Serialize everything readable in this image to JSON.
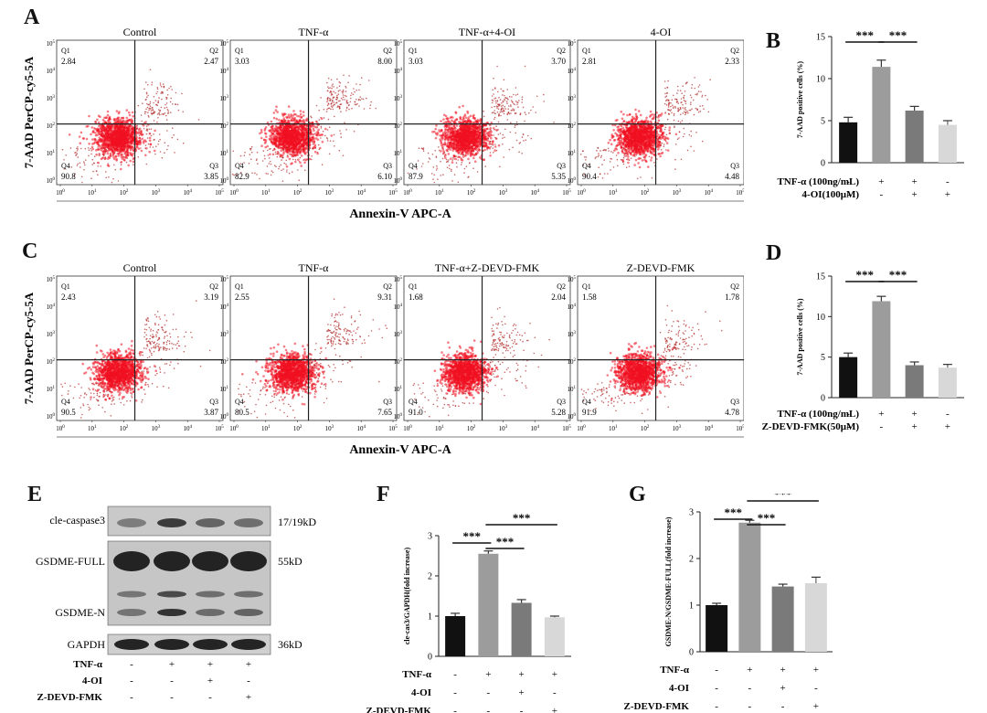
{
  "panel_letters": {
    "a": "A",
    "b": "B",
    "c": "C",
    "d": "D",
    "e": "E",
    "f": "F",
    "g": "G"
  },
  "flow_panels": [
    {
      "id": "A",
      "ylabel": "7-AAD PerCP-cy5-5A",
      "xlabel": "Annexin-V APC-A",
      "plots": [
        {
          "title": "Control",
          "q1": "2.84",
          "q2": "2.47",
          "q3": "3.85",
          "q4": "90.8",
          "active": false
        },
        {
          "title": "TNF-α",
          "q1": "3.03",
          "q2": "8.00",
          "q3": "6.10",
          "q4": "82.9",
          "active": true
        },
        {
          "title": "TNF-α+4-OI",
          "q1": "3.03",
          "q2": "3.70",
          "q3": "5.35",
          "q4": "87.9",
          "active": false
        },
        {
          "title": "4-OI",
          "q1": "2.81",
          "q2": "2.33",
          "q3": "4.48",
          "q4": "90.4",
          "active": false
        }
      ]
    },
    {
      "id": "C",
      "ylabel": "7-AAD PerCP-cy5-5A",
      "xlabel": "Annexin-V APC-A",
      "plots": [
        {
          "title": "Control",
          "q1": "2.43",
          "q2": "3.19",
          "q3": "3.87",
          "q4": "90.5",
          "active": false
        },
        {
          "title": "TNF-α",
          "q1": "2.55",
          "q2": "9.31",
          "q3": "7.65",
          "q4": "80.5",
          "active": true
        },
        {
          "title": "TNF-α+Z-DEVD-FMK",
          "q1": "1.68",
          "q2": "2.04",
          "q3": "5.28",
          "q4": "91.0",
          "active": false
        },
        {
          "title": "Z-DEVD-FMK",
          "q1": "1.58",
          "q2": "1.78",
          "q3": "4.78",
          "q4": "91.9",
          "active": false
        }
      ]
    }
  ],
  "quadrant_labels": {
    "q1": "Q1",
    "q2": "Q2",
    "q3": "Q3",
    "q4": "Q4"
  },
  "flow_axis_ticks": {
    "bases": [
      "10",
      "10",
      "10",
      "10",
      "10",
      "10"
    ],
    "exps": [
      "0",
      "1",
      "2",
      "3",
      "4",
      "5"
    ]
  },
  "chart_data": [
    {
      "id": "B",
      "type": "bar",
      "ylabel": "7-AAD positive cells (%)",
      "ylim": [
        0,
        15
      ],
      "yticks": [
        0,
        5,
        10,
        15
      ],
      "values": [
        4.8,
        11.4,
        6.2,
        4.5
      ],
      "errors": [
        0.6,
        0.8,
        0.5,
        0.5
      ],
      "colors": [
        "#111111",
        "#9c9c9c",
        "#7a7a7a",
        "#d8d8d8"
      ],
      "treatments": [
        {
          "label": "TNF-α (100ng/mL)",
          "signs": [
            "-",
            "+",
            "+",
            "-"
          ]
        },
        {
          "label": "4-OI(100μM)",
          "signs": [
            "-",
            "-",
            "+",
            "+"
          ]
        }
      ],
      "significance": [
        {
          "from": 0,
          "to": 1,
          "text": "***"
        },
        {
          "from": 1,
          "to": 2,
          "text": "***"
        }
      ]
    },
    {
      "id": "D",
      "type": "bar",
      "ylabel": "7-AAD positive cells (%)",
      "ylim": [
        0,
        15
      ],
      "yticks": [
        0,
        5,
        10,
        15
      ],
      "values": [
        5.0,
        11.9,
        4.0,
        3.7
      ],
      "errors": [
        0.5,
        0.6,
        0.4,
        0.4
      ],
      "colors": [
        "#111111",
        "#9c9c9c",
        "#7a7a7a",
        "#d8d8d8"
      ],
      "treatments": [
        {
          "label": "TNF-α (100ng/mL)",
          "signs": [
            "-",
            "+",
            "+",
            "-"
          ]
        },
        {
          "label": "Z-DEVD-FMK(50μM)",
          "signs": [
            "-",
            "-",
            "+",
            "+"
          ]
        }
      ],
      "significance": [
        {
          "from": 0,
          "to": 1,
          "text": "***"
        },
        {
          "from": 1,
          "to": 2,
          "text": "***"
        }
      ]
    },
    {
      "id": "F",
      "type": "bar",
      "ylabel": "cle-cas3/GAPDH(fold increase)",
      "ylim": [
        0,
        3
      ],
      "yticks": [
        0,
        1,
        2,
        3
      ],
      "values": [
        1.0,
        2.55,
        1.33,
        0.97
      ],
      "errors": [
        0.07,
        0.07,
        0.08,
        0.03
      ],
      "colors": [
        "#111111",
        "#9c9c9c",
        "#7a7a7a",
        "#d8d8d8"
      ],
      "treatments": [
        {
          "label": "TNF-α",
          "signs": [
            "-",
            "+",
            "+",
            "+"
          ]
        },
        {
          "label": "4-OI",
          "signs": [
            "-",
            "-",
            "+",
            "-"
          ]
        },
        {
          "label": "Z-DEVD-FMK",
          "signs": [
            "-",
            "-",
            "-",
            "+"
          ]
        }
      ],
      "significance": [
        {
          "from": 0,
          "to": 1,
          "text": "***"
        },
        {
          "from": 1,
          "to": 2,
          "text": "***"
        },
        {
          "from": 1,
          "to": 3,
          "text": "***"
        }
      ]
    },
    {
      "id": "G",
      "type": "bar",
      "ylabel": "GSDME-N/GSDME-FULL(fold increase)",
      "ylim": [
        0,
        3
      ],
      "yticks": [
        0,
        1,
        2,
        3
      ],
      "values": [
        1.0,
        2.77,
        1.4,
        1.47
      ],
      "errors": [
        0.04,
        0.05,
        0.05,
        0.13
      ],
      "colors": [
        "#111111",
        "#9c9c9c",
        "#7a7a7a",
        "#d8d8d8"
      ],
      "treatments": [
        {
          "label": "TNF-α",
          "signs": [
            "-",
            "+",
            "+",
            "+"
          ]
        },
        {
          "label": "4-OI",
          "signs": [
            "-",
            "-",
            "+",
            "-"
          ]
        },
        {
          "label": "Z-DEVD-FMK",
          "signs": [
            "-",
            "-",
            "-",
            "+"
          ]
        }
      ],
      "significance": [
        {
          "from": 0,
          "to": 1,
          "text": "***"
        },
        {
          "from": 1,
          "to": 2,
          "text": "***"
        },
        {
          "from": 1,
          "to": 3,
          "text": "***"
        }
      ]
    }
  ],
  "western": {
    "bands": [
      {
        "name": "cle-caspase3",
        "size": "17/19kD"
      },
      {
        "name": "GSDME-FULL",
        "size": "55kD"
      },
      {
        "name": "GSDME-N",
        "size": ""
      },
      {
        "name": "GAPDH",
        "size": "36kD"
      }
    ],
    "treatments": [
      {
        "label": "TNF-α",
        "signs": [
          "-",
          "+",
          "+",
          "+"
        ]
      },
      {
        "label": "4-OI",
        "signs": [
          "-",
          "-",
          "+",
          "-"
        ]
      },
      {
        "label": "Z-DEVD-FMK",
        "signs": [
          "-",
          "-",
          "-",
          "+"
        ]
      }
    ]
  }
}
